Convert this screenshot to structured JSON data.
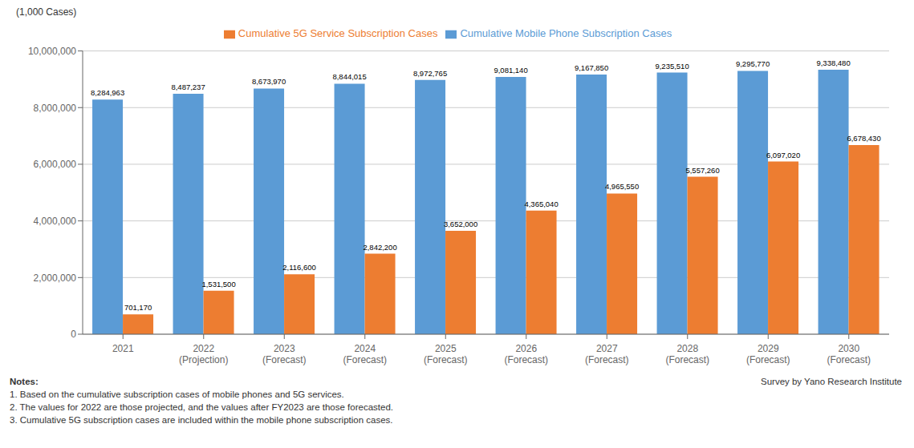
{
  "chart_data": {
    "type": "bar",
    "ylabel": "(1,000 Cases)",
    "categories": [
      "2021",
      "2022\n(Projection)",
      "2023\n(Forecast)",
      "2024\n(Forecast)",
      "2025\n(Forecast)",
      "2026\n(Forecast)",
      "2027\n(Forecast)",
      "2028\n(Forecast)",
      "2029\n(Forecast)",
      "2030\n(Forecast)"
    ],
    "series": [
      {
        "name": "Cumulative Mobile Phone Subscription Cases",
        "color": "#5B9BD5",
        "values": [
          8284963,
          8487237,
          8673970,
          8844015,
          8972765,
          9081140,
          9167850,
          9235510,
          9295770,
          9338480
        ],
        "value_labels": [
          "8,284,963",
          "8,487,237",
          "8,673,970",
          "8,844,015",
          "8,972,765",
          "9,081,140",
          "9,167,850",
          "9,235,510",
          "9,295,770",
          "9,338,480"
        ]
      },
      {
        "name": "Cumulative 5G Service Subscription Cases",
        "color": "#ED7D31",
        "values": [
          701170,
          1531500,
          2116600,
          2842200,
          3652000,
          4365040,
          4965550,
          5557260,
          6097020,
          6678430
        ],
        "value_labels": [
          "701,170",
          "1,531,500",
          "2,116,600",
          "2,842,200",
          "3,652,000",
          "4,365,040",
          "4,965,550",
          "5,557,260",
          "6,097,020",
          "6,678,430"
        ]
      }
    ],
    "ylim": [
      0,
      10000000
    ],
    "yticks": [
      0,
      {
        "value": 2000000,
        "label": "2,000,000"
      },
      {
        "value": 4000000,
        "label": "4,000,000"
      },
      {
        "value": 6000000,
        "label": "6,000,000"
      },
      {
        "value": 8000000,
        "label": "8,000,000"
      },
      {
        "value": 10000000,
        "label": "10,000,000"
      }
    ],
    "grid": true,
    "legend": "top",
    "data_labels": true,
    "annotations": [
      "Notes:",
      "1. Based on the cumulative subscription cases of mobile phones and 5G services.",
      "2. The values for 2022 are those projected, and the values after FY2023 are those forecasted.",
      "3. Cumulative 5G subscription cases are included within the mobile phone subscription cases.",
      "Survey by Yano Research Institute"
    ]
  }
}
